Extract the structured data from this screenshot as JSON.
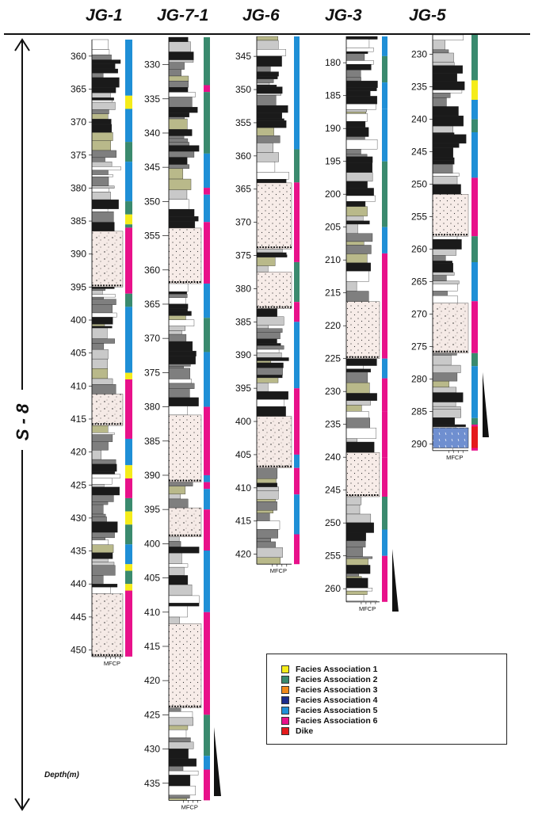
{
  "wells": [
    {
      "name": "JG-1",
      "ticks": [
        "360",
        "365",
        "370",
        "375",
        "380",
        "385",
        "390",
        "395",
        "400",
        "405",
        "410",
        "415",
        "420",
        "425",
        "430",
        "435",
        "440",
        "445",
        "450"
      ]
    },
    {
      "name": "JG-7-1",
      "ticks": [
        "330",
        "335",
        "340",
        "345",
        "350",
        "355",
        "360",
        "365",
        "370",
        "375",
        "380",
        "385",
        "390",
        "395",
        "400",
        "405",
        "410",
        "415",
        "420",
        "425",
        "430",
        "435"
      ]
    },
    {
      "name": "JG-6",
      "ticks": [
        "345",
        "350",
        "355",
        "360",
        "365",
        "370",
        "375",
        "380",
        "385",
        "390",
        "395",
        "400",
        "405",
        "410",
        "415",
        "420"
      ]
    },
    {
      "name": "JG-3",
      "ticks": [
        "180",
        "185",
        "190",
        "195",
        "200",
        "205",
        "210",
        "215",
        "220",
        "225",
        "230",
        "235",
        "240",
        "245",
        "250",
        "255",
        "260"
      ]
    },
    {
      "name": "JG-5",
      "ticks": [
        "230",
        "235",
        "240",
        "245",
        "250",
        "255",
        "260",
        "265",
        "270",
        "275",
        "280",
        "285",
        "290"
      ]
    }
  ],
  "grain_size_scale": "MFCP",
  "sequence_label": "S - 8",
  "depth_label": "Depth(m)",
  "colors": {
    "fa1": "#f5ec1a",
    "fa2": "#3a8a6e",
    "fa3": "#f08a1c",
    "fa4": "#1c2c8c",
    "fa5": "#1f8fd6",
    "fa6": "#e8118a",
    "dike": "#e41a1c"
  },
  "legend": [
    {
      "label": "Facies Association 1",
      "color": "#f5ec1a"
    },
    {
      "label": "Facies Association 2",
      "color": "#3a8a6e"
    },
    {
      "label": "Facies Association 3",
      "color": "#f08a1c"
    },
    {
      "label": "Facies Association 4",
      "color": "#1c2c8c"
    },
    {
      "label": "Facies Association 5",
      "color": "#1f8fd6"
    },
    {
      "label": "Facies Association 6",
      "color": "#e8118a"
    },
    {
      "label": "Dike",
      "color": "#e41a1c"
    }
  ]
}
